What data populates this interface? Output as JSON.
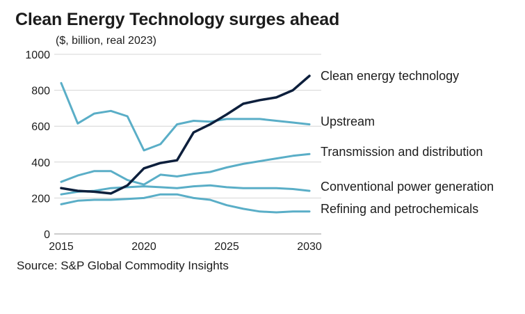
{
  "title": "Clean Energy Technology surges ahead",
  "subtitle": "($, billion, real 2023)",
  "source": "Source: S&P Global Commodity Insights",
  "chart_data": {
    "type": "line",
    "title": "Clean Energy Technology surges ahead",
    "subtitle": "($, billion, real 2023)",
    "x": [
      2015,
      2016,
      2017,
      2018,
      2019,
      2020,
      2021,
      2022,
      2023,
      2024,
      2025,
      2026,
      2027,
      2028,
      2029,
      2030
    ],
    "xlim": [
      2015,
      2030
    ],
    "ylim": [
      0,
      1000
    ],
    "x_ticks": [
      2015,
      2020,
      2025,
      2030
    ],
    "y_ticks": [
      0,
      200,
      400,
      600,
      800,
      1000
    ],
    "grid": "horizontal",
    "legend": "direct labels at right end of lines",
    "series": [
      {
        "name": "Clean energy technology",
        "color": "#0d1f3c",
        "values": [
          255,
          240,
          235,
          225,
          270,
          365,
          395,
          410,
          565,
          610,
          665,
          725,
          745,
          760,
          800,
          880
        ]
      },
      {
        "name": "Upstream",
        "color": "#5aaec7",
        "values": [
          840,
          615,
          670,
          685,
          655,
          465,
          500,
          610,
          630,
          625,
          640,
          640,
          640,
          630,
          620,
          610
        ]
      },
      {
        "name": "Transmission and distribution",
        "color": "#5aaec7",
        "values": [
          290,
          325,
          350,
          350,
          300,
          275,
          330,
          320,
          335,
          345,
          370,
          390,
          405,
          420,
          435,
          445
        ]
      },
      {
        "name": "Conventional power generation",
        "color": "#5aaec7",
        "values": [
          220,
          235,
          240,
          255,
          260,
          265,
          260,
          255,
          265,
          270,
          260,
          255,
          255,
          255,
          250,
          240
        ]
      },
      {
        "name": "Refining and petrochemicals",
        "color": "#5aaec7",
        "values": [
          165,
          185,
          190,
          190,
          195,
          200,
          220,
          220,
          200,
          190,
          160,
          140,
          125,
          120,
          125,
          125
        ]
      }
    ]
  }
}
